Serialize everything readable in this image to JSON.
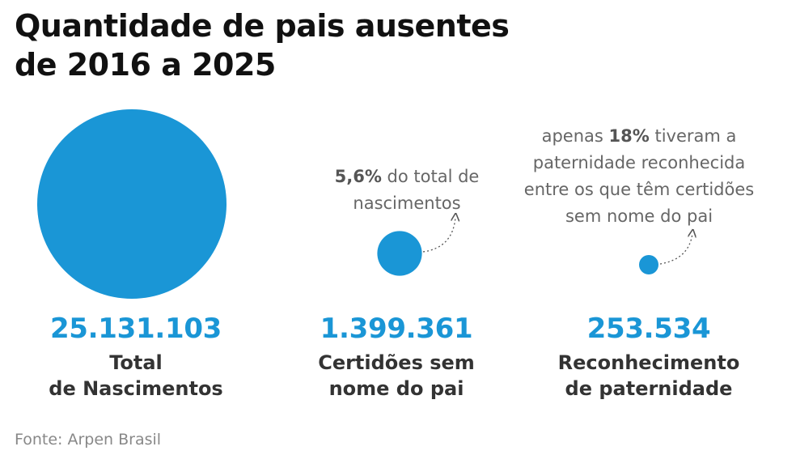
{
  "title": {
    "line1": "Quantidade de pais ausentes",
    "line2": "de 2016 a 2025"
  },
  "source": "Fonte: Arpen Brasil",
  "colors": {
    "bubble": "#1a96d6",
    "value": "#1a96d6",
    "label": "#333333",
    "note": "#666666"
  },
  "chart_data": {
    "type": "bubble",
    "categories": [
      "Total de Nascimentos",
      "Certidões sem nome do pai",
      "Reconhecimento de paternidade"
    ],
    "values": [
      25131103,
      1399361,
      253534
    ],
    "items": [
      {
        "value_label": "25.131.103",
        "label_lines": [
          "Total",
          "de Nascimentos"
        ]
      },
      {
        "value_label": "1.399.361",
        "label_lines": [
          "Certidões sem",
          "nome do pai"
        ],
        "annotation": {
          "highlight": "5,6%",
          "text1": " do total de",
          "text2": "nascimentos"
        }
      },
      {
        "value_label": "253.534",
        "label_lines": [
          "Reconhecimento",
          "de paternidade"
        ],
        "annotation": {
          "text1a": "apenas ",
          "highlight": "18%",
          "text1b": " tiveram a",
          "text2": "paternidade reconhecida",
          "text3": "entre os que têm certidões",
          "text4": "sem nome do pai"
        }
      }
    ]
  }
}
